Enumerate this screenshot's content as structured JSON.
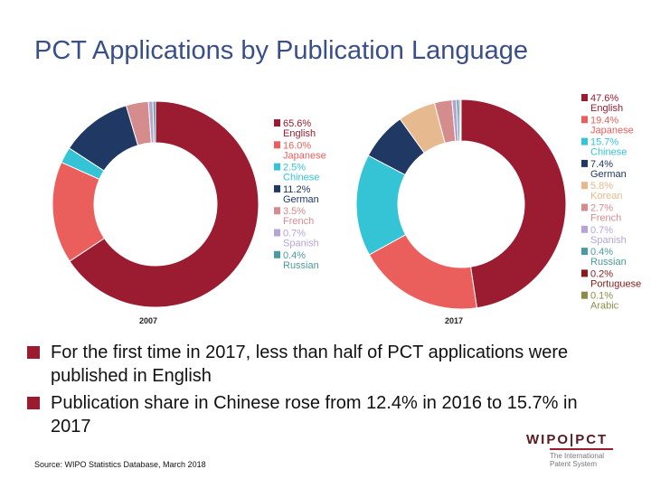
{
  "title": "PCT Applications by Publication Language",
  "chart_data": [
    {
      "type": "pie",
      "donut": true,
      "xlabel": "2007",
      "legend_position": "right",
      "categories": [
        "English",
        "Japanese",
        "Chinese",
        "German",
        "French",
        "Spanish",
        "Russian"
      ],
      "value_labels": [
        "65.6%",
        "16.0%",
        "2.5%",
        "11.2%",
        "3.5%",
        "0.7%",
        "0.4%"
      ],
      "values": [
        65.6,
        16.0,
        2.5,
        11.2,
        3.5,
        0.7,
        0.4
      ],
      "colors": [
        "#9b1b30",
        "#ea5f5c",
        "#35c3d6",
        "#1f3864",
        "#d48c8c",
        "#b6a4d6",
        "#4a9a9f"
      ]
    },
    {
      "type": "pie",
      "donut": true,
      "xlabel": "2017",
      "legend_position": "right",
      "categories": [
        "English",
        "Japanese",
        "Chinese",
        "German",
        "Korean",
        "French",
        "Spanish",
        "Russian",
        "Portuguese",
        "Arabic"
      ],
      "value_labels": [
        "47.6%",
        "19.4%",
        "15.7%",
        "7.4%",
        "5.8%",
        "2.7%",
        "0.7%",
        "0.4%",
        "0.2%",
        "0.1%"
      ],
      "values": [
        47.6,
        19.4,
        15.7,
        7.4,
        5.8,
        2.7,
        0.7,
        0.4,
        0.2,
        0.1
      ],
      "colors": [
        "#9b1b30",
        "#ea5f5c",
        "#35c3d6",
        "#1f3864",
        "#e6b98f",
        "#d48c8c",
        "#b6a4d6",
        "#4a9a9f",
        "#8b1a1a",
        "#8b8b4a"
      ]
    }
  ],
  "bullets": [
    "For the first time in 2017, less than half of PCT applications were published in English",
    "Publication share in Chinese rose from 12.4% in 2016 to 15.7% in 2017"
  ],
  "source": "Source: WIPO Statistics Database, March 2018",
  "logo": {
    "name": "WIPO|PCT",
    "subtitle_line1": "The International",
    "subtitle_line2": "Patent System"
  },
  "colors": {
    "accent": "#9b1b30",
    "title": "#3a4f8a"
  }
}
